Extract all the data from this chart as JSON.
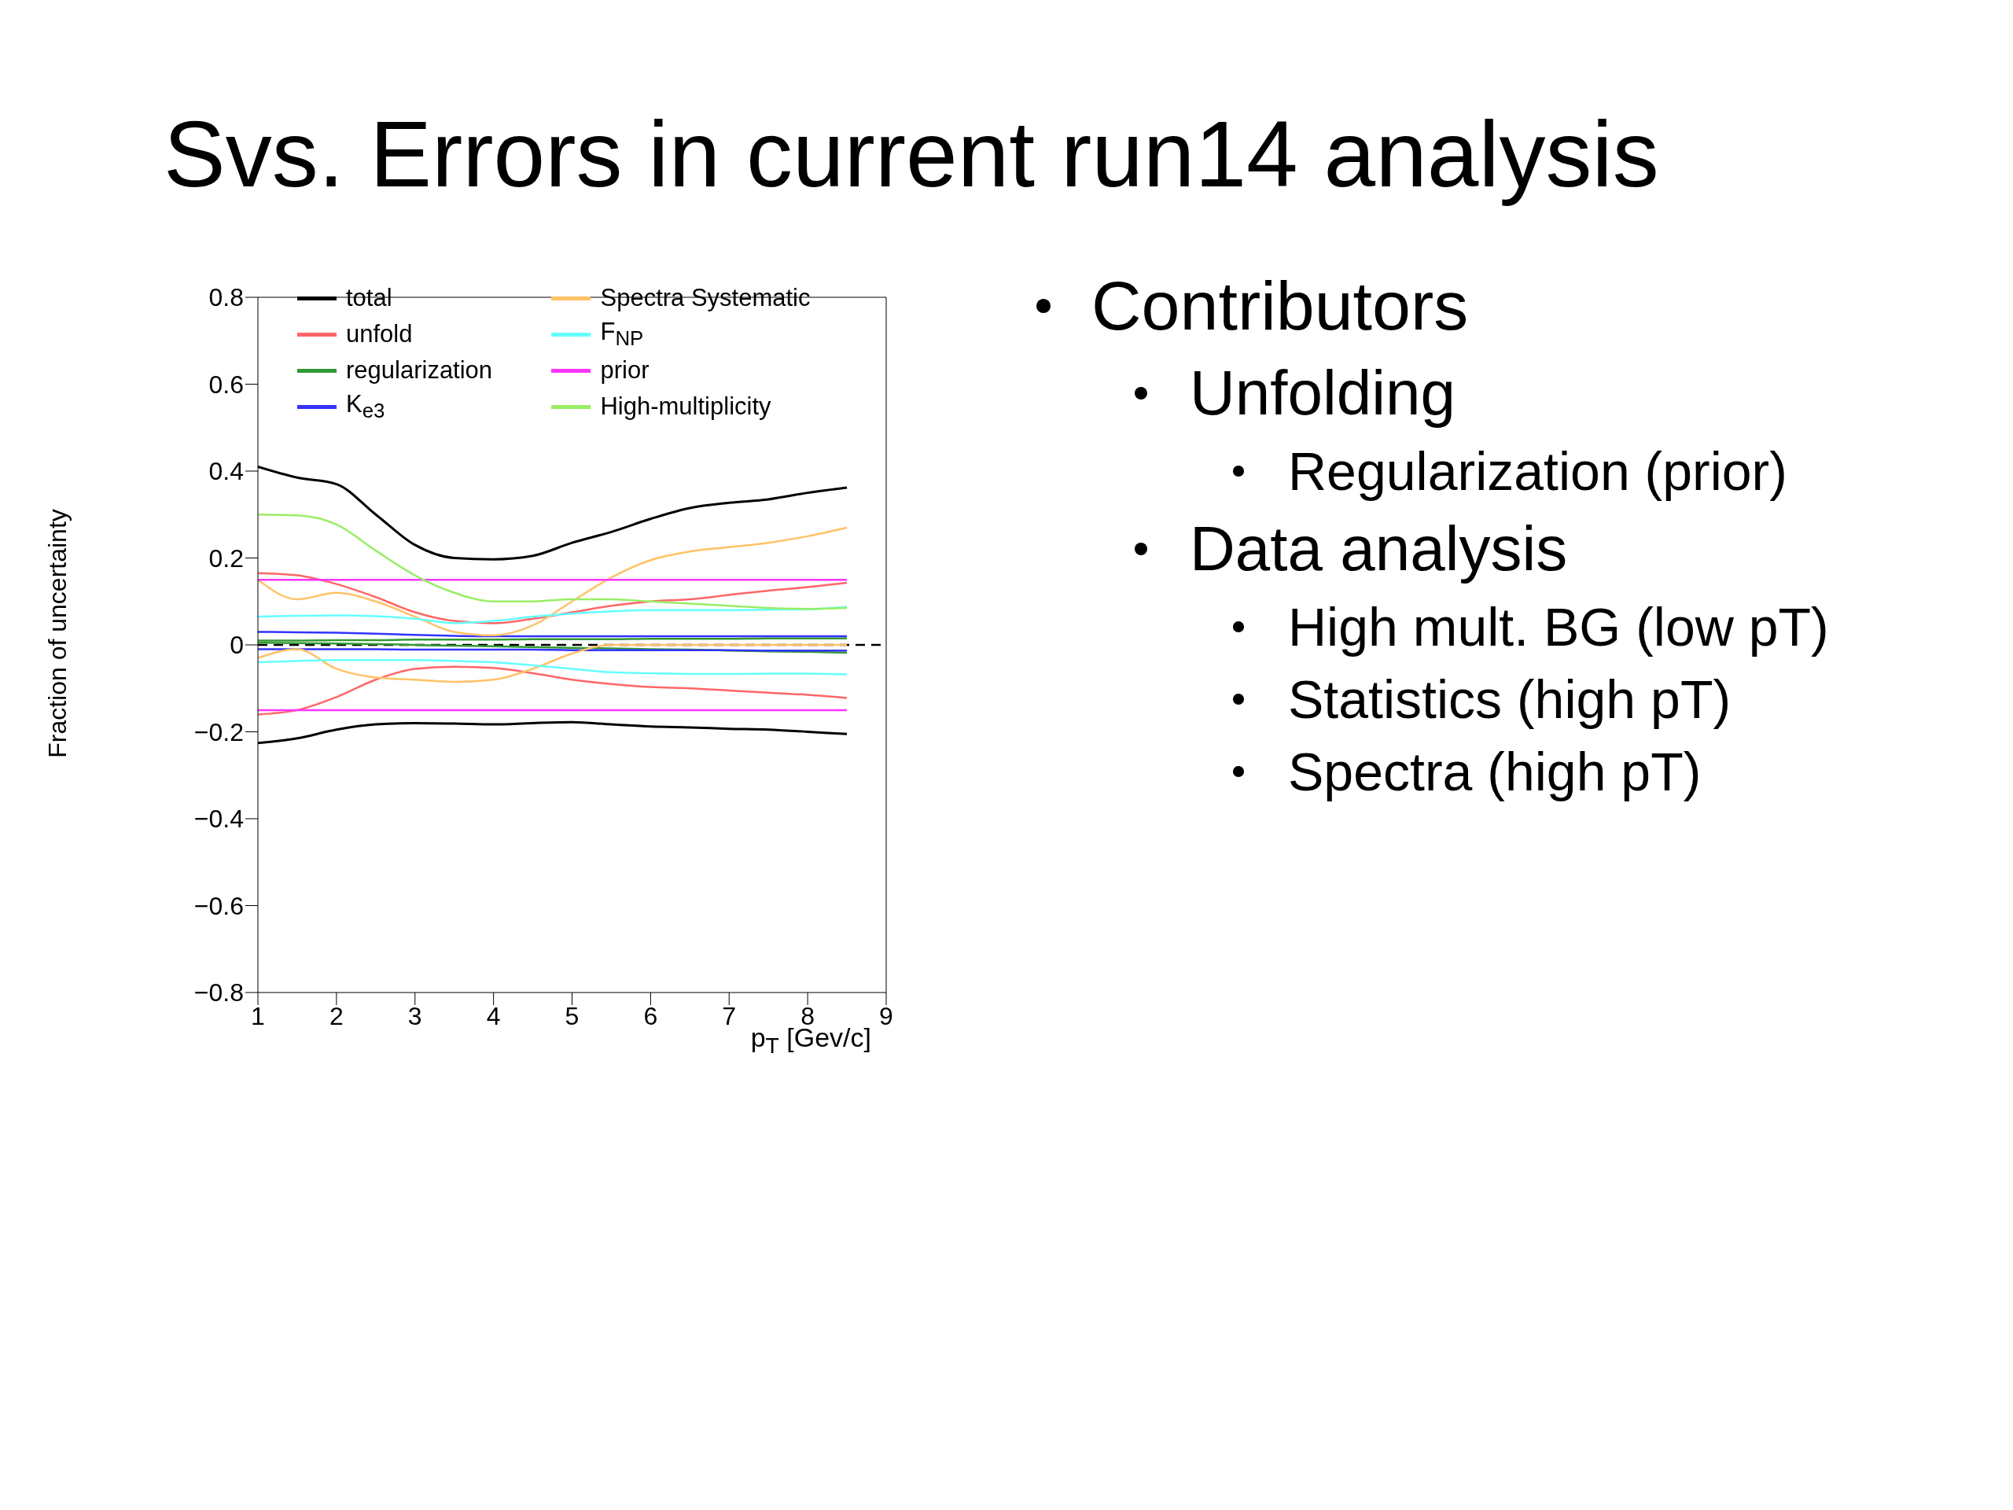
{
  "chart_data": {
    "type": "line",
    "title": "Svs. Errors in current run14 analysis",
    "xlabel": "p$_{T}$ [Gev/c]",
    "ylabel": "Fraction of uncertainty",
    "x": [
      1,
      1.5,
      2,
      2.5,
      3,
      3.5,
      4,
      4.5,
      5,
      5.5,
      6,
      6.5,
      7,
      7.5,
      8,
      8.5
    ],
    "xlim": [
      1,
      9
    ],
    "xticks": [
      1,
      2,
      3,
      4,
      5,
      6,
      7,
      8,
      9
    ],
    "ylim": [
      -0.8,
      0.8
    ],
    "yticks": [
      {
        "value": -0.8,
        "label": "−0.8"
      },
      {
        "value": -0.6,
        "label": "−0.6"
      },
      {
        "value": -0.4,
        "label": "−0.4"
      },
      {
        "value": -0.2,
        "label": "−0.2"
      },
      0,
      0.2,
      0.4,
      0.6,
      0.8
    ],
    "grid": false,
    "legend": "top",
    "marker": "none",
    "line_style": "solid",
    "ref_lines": [
      {
        "axis": "y",
        "value": 0,
        "color": "#000000",
        "line_style": "dashed"
      }
    ],
    "series": [
      {
        "name": "total",
        "color": "#000000",
        "values": [
          0.41,
          0.385,
          0.37,
          0.3,
          0.23,
          0.2,
          0.197,
          0.205,
          0.235,
          0.26,
          0.29,
          0.315,
          0.327,
          0.335,
          0.35,
          0.362
        ]
      },
      {
        "color": "#000000",
        "values": [
          -0.226,
          -0.215,
          -0.195,
          -0.183,
          -0.18,
          -0.181,
          -0.183,
          -0.18,
          -0.178,
          -0.183,
          -0.188,
          -0.19,
          -0.193,
          -0.195,
          -0.2,
          -0.205
        ]
      },
      {
        "name": "unfold",
        "color": "#ff6666",
        "values": [
          0.165,
          0.16,
          0.14,
          0.11,
          0.075,
          0.055,
          0.05,
          0.06,
          0.075,
          0.09,
          0.1,
          0.105,
          0.115,
          0.125,
          0.133,
          0.143
        ]
      },
      {
        "color": "#ff6666",
        "values": [
          -0.16,
          -0.15,
          -0.12,
          -0.08,
          -0.055,
          -0.05,
          -0.053,
          -0.065,
          -0.08,
          -0.09,
          -0.097,
          -0.1,
          -0.105,
          -0.11,
          -0.115,
          -0.122
        ]
      },
      {
        "name": "regularization",
        "color": "#339933",
        "values": [
          0.01,
          0.01,
          0.011,
          0.011,
          0.012,
          0.012,
          0.012,
          0.013,
          0.013,
          0.013,
          0.014,
          0.014,
          0.014,
          0.015,
          0.015,
          0.015
        ]
      },
      {
        "color": "#339933",
        "values": [
          0.005,
          0.004,
          0.003,
          0.002,
          0.0,
          -0.002,
          -0.003,
          -0.005,
          -0.007,
          -0.008,
          -0.01,
          -0.011,
          -0.013,
          -0.015,
          -0.016,
          -0.018
        ]
      },
      {
        "name": "K$_{e3}$",
        "color": "#3333ff",
        "values": [
          0.03,
          0.029,
          0.028,
          0.026,
          0.023,
          0.021,
          0.02,
          0.02,
          0.02,
          0.02,
          0.02,
          0.02,
          0.02,
          0.02,
          0.02,
          0.02
        ]
      },
      {
        "color": "#3333ff",
        "values": [
          -0.01,
          -0.01,
          -0.01,
          -0.01,
          -0.011,
          -0.011,
          -0.011,
          -0.011,
          -0.012,
          -0.012,
          -0.012,
          -0.012,
          -0.012,
          -0.013,
          -0.013,
          -0.013
        ]
      },
      {
        "name": "Spectra Systematic",
        "color": "#ffc266",
        "values": [
          0.15,
          0.105,
          0.12,
          0.1,
          0.065,
          0.03,
          0.022,
          0.045,
          0.1,
          0.155,
          0.195,
          0.215,
          0.225,
          0.235,
          0.25,
          0.27
        ]
      },
      {
        "color": "#ffc266",
        "values": [
          -0.03,
          -0.01,
          -0.055,
          -0.075,
          -0.08,
          -0.085,
          -0.08,
          -0.055,
          -0.02,
          0.0,
          0.0,
          0.0,
          0.0,
          0.0,
          0.0,
          0.0
        ]
      },
      {
        "name": "F$_{NP}$",
        "color": "#66ffff",
        "values": [
          0.065,
          0.067,
          0.068,
          0.066,
          0.06,
          0.05,
          0.055,
          0.065,
          0.072,
          0.077,
          0.08,
          0.08,
          0.08,
          0.081,
          0.082,
          0.088
        ]
      },
      {
        "color": "#66ffff",
        "values": [
          -0.04,
          -0.037,
          -0.035,
          -0.035,
          -0.035,
          -0.037,
          -0.04,
          -0.047,
          -0.055,
          -0.063,
          -0.065,
          -0.067,
          -0.067,
          -0.066,
          -0.066,
          -0.068
        ]
      },
      {
        "name": "prior",
        "color": "#ff33ff",
        "values": [
          0.15,
          0.15,
          0.15,
          0.15,
          0.15,
          0.15,
          0.15,
          0.15,
          0.15,
          0.15,
          0.15,
          0.15,
          0.15,
          0.15,
          0.15,
          0.15
        ]
      },
      {
        "color": "#ff33ff",
        "values": [
          -0.15,
          -0.15,
          -0.15,
          -0.15,
          -0.15,
          -0.15,
          -0.15,
          -0.15,
          -0.15,
          -0.15,
          -0.15,
          -0.15,
          -0.15,
          -0.15,
          -0.15,
          -0.15
        ]
      },
      {
        "name": "High-multiplicity",
        "color": "#99ee66",
        "values": [
          0.3,
          0.298,
          0.277,
          0.217,
          0.16,
          0.12,
          0.1,
          0.1,
          0.105,
          0.105,
          0.1,
          0.095,
          0.09,
          0.085,
          0.083,
          0.085
        ]
      }
    ],
    "annotations": [
      "Contributors",
      "Unfolding",
      "Regularization (prior)",
      "Data analysis",
      "High mult. BG (low pT)",
      "Statistics (high pT)",
      "Spectra (high pT)"
    ]
  }
}
